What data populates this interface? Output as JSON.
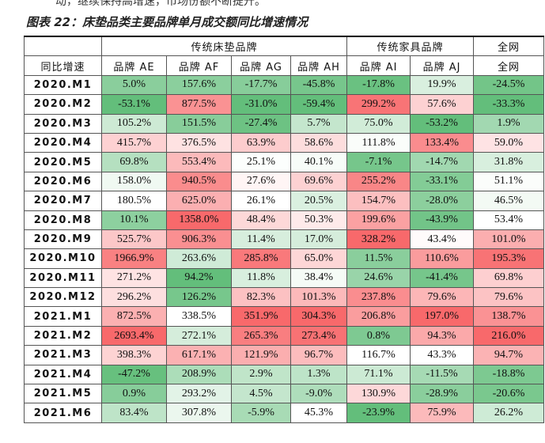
{
  "header": {
    "top_text": "动，继续保持高增速，市场份额不断提升。",
    "title": "图表 22：床垫品类主要品牌单月成交额同比增速情况"
  },
  "table": {
    "groups": [
      "传统床垫品牌",
      "传统家具品牌",
      "全网"
    ],
    "columns": [
      "同比增速",
      "品牌 AE",
      "品牌 AF",
      "品牌 AG",
      "品牌 AH",
      "品牌 AI",
      "品牌 AJ",
      "全网"
    ],
    "rows": [
      [
        "2020.M1",
        "5.0%",
        "157.6%",
        "-17.7%",
        "-45.8%",
        "-17.8%",
        "19.9%",
        "-24.5%"
      ],
      [
        "2020.M2",
        "-53.1%",
        "877.5%",
        "-31.0%",
        "-59.4%",
        "299.2%",
        "57.6%",
        "-33.3%"
      ],
      [
        "2020.M3",
        "105.2%",
        "151.5%",
        "-27.4%",
        "5.7%",
        "75.0%",
        "-53.2%",
        "1.9%"
      ],
      [
        "2020.M4",
        "415.7%",
        "376.5%",
        "63.9%",
        "58.6%",
        "111.8%",
        "133.4%",
        "59.0%"
      ],
      [
        "2020.M5",
        "69.8%",
        "553.4%",
        "25.1%",
        "40.1%",
        "-7.1%",
        "-14.7%",
        "31.8%"
      ],
      [
        "2020.M6",
        "158.0%",
        "940.5%",
        "27.6%",
        "69.6%",
        "255.2%",
        "-33.1%",
        "51.1%"
      ],
      [
        "2020.M7",
        "180.5%",
        "625.0%",
        "26.1%",
        "20.5%",
        "154.7%",
        "-28.0%",
        "46.5%"
      ],
      [
        "2020.M8",
        "10.1%",
        "1358.0%",
        "48.4%",
        "50.3%",
        "199.6%",
        "-43.9%",
        "53.4%"
      ],
      [
        "2020.M9",
        "525.7%",
        "906.3%",
        "11.4%",
        "17.0%",
        "328.2%",
        "43.4%",
        "101.0%"
      ],
      [
        "2020.M10",
        "1966.9%",
        "263.6%",
        "285.8%",
        "65.0%",
        "11.5%",
        "110.6%",
        "195.3%"
      ],
      [
        "2020.M11",
        "271.2%",
        "94.2%",
        "11.8%",
        "38.4%",
        "24.6%",
        "-41.4%",
        "69.8%"
      ],
      [
        "2020.M12",
        "296.2%",
        "126.2%",
        "82.3%",
        "101.3%",
        "237.8%",
        "79.6%",
        "79.6%"
      ],
      [
        "2021.M1",
        "872.5%",
        "338.5%",
        "351.9%",
        "304.3%",
        "206.8%",
        "197.0%",
        "138.7%"
      ],
      [
        "2021.M2",
        "2693.4%",
        "272.1%",
        "265.3%",
        "273.4%",
        "0.8%",
        "94.3%",
        "216.0%"
      ],
      [
        "2021.M3",
        "398.3%",
        "617.1%",
        "121.9%",
        "96.7%",
        "116.7%",
        "43.3%",
        "94.7%"
      ],
      [
        "2021.M4",
        "-47.2%",
        "208.9%",
        "2.9%",
        "1.3%",
        "71.1%",
        "-11.5%",
        "-18.8%"
      ],
      [
        "2021.M5",
        "0.9%",
        "293.2%",
        "4.5%",
        "-9.0%",
        "130.9%",
        "-28.9%",
        "-20.6%"
      ],
      [
        "2021.M6",
        "83.4%",
        "307.8%",
        "-5.9%",
        "45.3%",
        "-23.9%",
        "75.9%",
        "26.2%"
      ]
    ]
  }
}
